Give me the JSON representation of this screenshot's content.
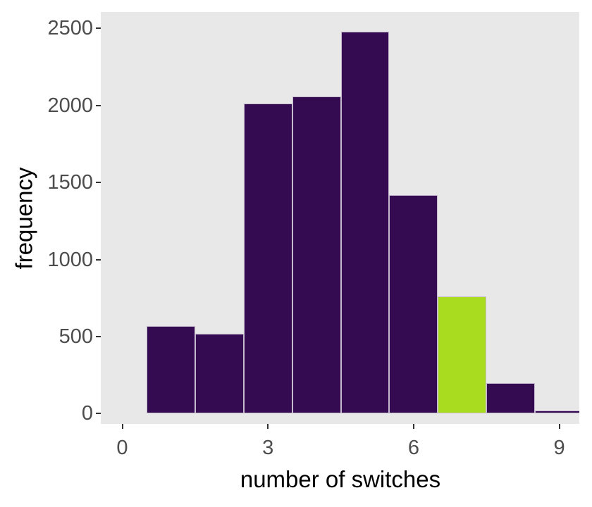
{
  "chart_data": {
    "type": "bar",
    "subtype": "histogram",
    "title": "",
    "xlabel": "number of switches",
    "ylabel": "frequency",
    "bin_centers": [
      1,
      2,
      3,
      4,
      5,
      6,
      7,
      8,
      9
    ],
    "bin_width": 1,
    "values": [
      570,
      520,
      2010,
      2060,
      2480,
      1420,
      760,
      200,
      20
    ],
    "highlight_bin_center": 7,
    "x_ticks": [
      0,
      3,
      6,
      9
    ],
    "y_ticks": [
      0,
      500,
      1000,
      1500,
      2000,
      2500
    ],
    "xlim": [
      -0.44,
      9.41
    ],
    "ylim": [
      -67,
      2607
    ],
    "grid": "off",
    "legend": "none",
    "colors": {
      "bar_fill": "#340A50",
      "highlight_fill": "#A9DB1E",
      "bar_border": "#C6BACF",
      "panel_background": "#E8E8E8",
      "outer_background": "#FFFFFF",
      "axis_text": "#4D4D4D",
      "axis_title": "#000000",
      "tick_mark": "#333333"
    }
  }
}
